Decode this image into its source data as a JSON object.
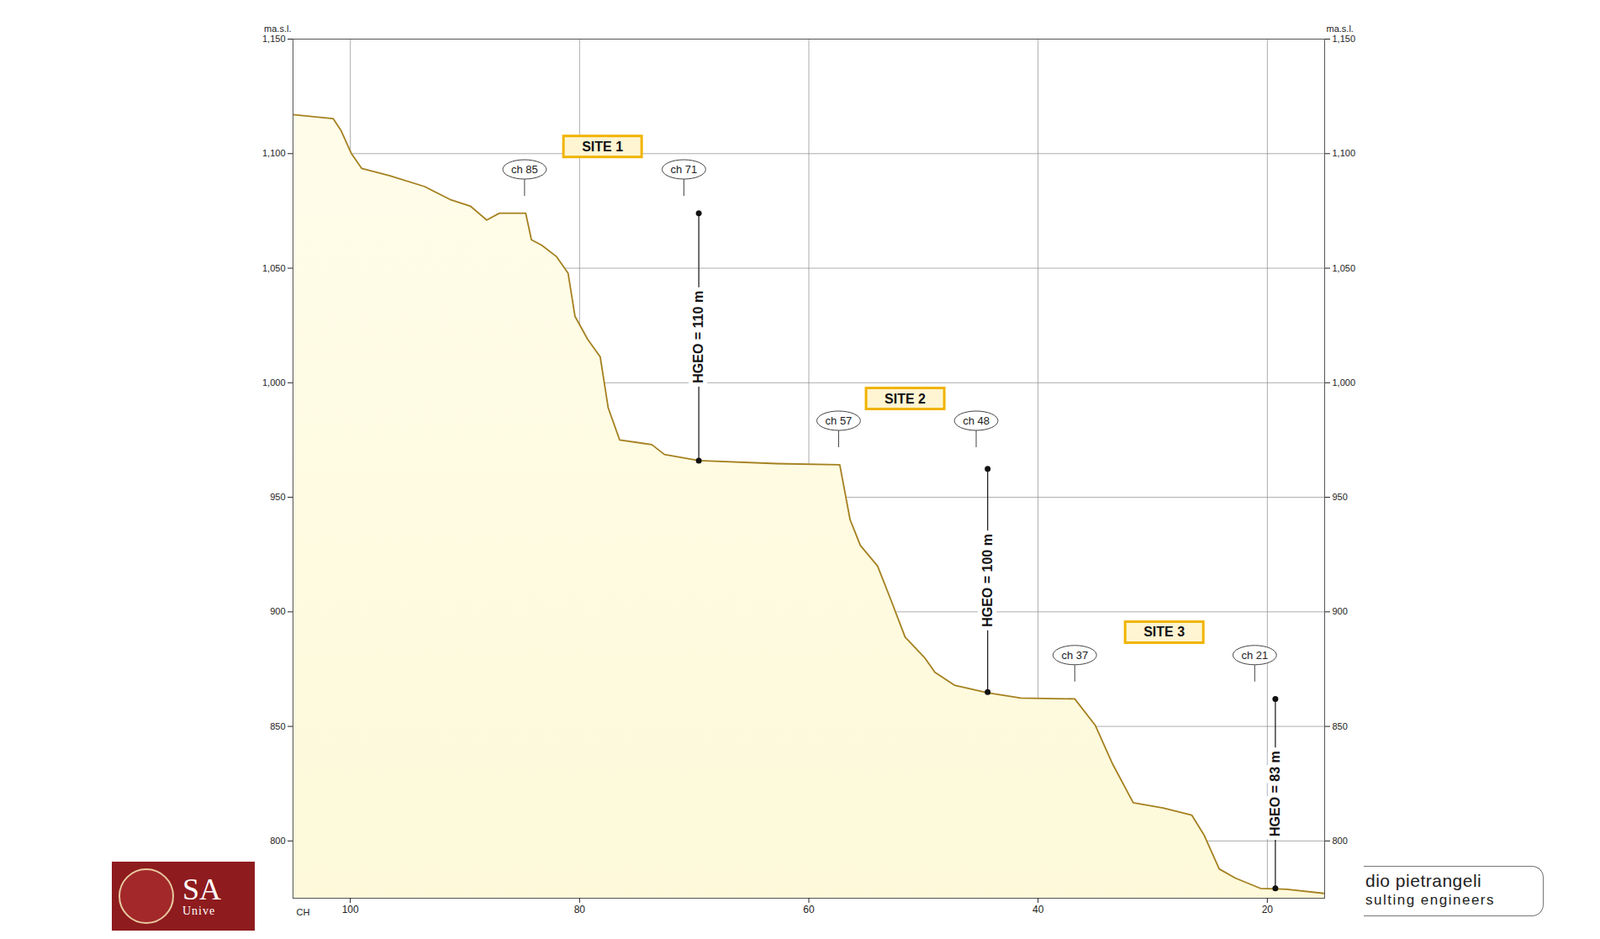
{
  "chart_data": {
    "type": "area",
    "x_label": "CH",
    "y_label": "ma.s.l.",
    "color": "#a5801f",
    "grid": true,
    "xlim": [
      105,
      15
    ],
    "ylim": [
      775,
      1150
    ],
    "xticks": [
      100,
      80,
      60,
      40,
      20
    ],
    "yticks": [
      800,
      850,
      900,
      950,
      1000,
      1050,
      1100,
      1150
    ],
    "x": [
      105,
      101.5,
      100.8,
      99.9,
      99,
      96.6,
      93.5,
      91.3,
      89.5,
      88.1,
      87,
      84.7,
      84.2,
      83.3,
      82,
      81,
      80.4,
      79.3,
      78.2,
      77.5,
      76.5,
      73.7,
      72.6,
      69.6,
      62.8,
      57.3,
      56.4,
      55.5,
      54,
      52.8,
      51.6,
      49.9,
      49,
      47.3,
      44.4,
      41.5,
      36.8,
      35,
      33.5,
      31.7,
      29.1,
      26.6,
      25.5,
      24.2,
      22.8,
      20.6,
      18.3,
      15
    ],
    "values": [
      1117,
      1115.3,
      1110,
      1100,
      1093.5,
      1090.4,
      1085.6,
      1080,
      1077,
      1071,
      1074,
      1074,
      1062.4,
      1060,
      1055,
      1047.8,
      1029,
      1019,
      1011.3,
      989,
      975,
      973,
      968.7,
      966,
      964.7,
      964.2,
      940.2,
      929,
      920,
      904.7,
      889,
      880,
      873.6,
      868,
      864.7,
      862.4,
      862,
      850.4,
      833.6,
      816.7,
      814.4,
      811.3,
      802.4,
      787.8,
      783.8,
      779.3,
      778.9,
      777.1
    ],
    "sites": [
      {
        "label": "SITE 1",
        "x": 78,
        "y": 1103
      },
      {
        "label": "SITE 2",
        "x": 51.6,
        "y": 993
      },
      {
        "label": "SITE 3",
        "x": 29,
        "y": 891
      }
    ],
    "chainage_labels": [
      {
        "label": "ch 85",
        "x": 84.8,
        "y": 1093
      },
      {
        "label": "ch 71",
        "x": 70.9,
        "y": 1093
      },
      {
        "label": "ch 57",
        "x": 57.4,
        "y": 983.3
      },
      {
        "label": "ch 48",
        "x": 45.4,
        "y": 983.3
      },
      {
        "label": "ch 37",
        "x": 36.8,
        "y": 881
      },
      {
        "label": "ch 21",
        "x": 21.1,
        "y": 881
      }
    ],
    "heads": [
      {
        "label": "HGEO = 110 m",
        "x": 69.6,
        "y1": 966,
        "y2": 1074
      },
      {
        "label": "HGEO = 100 m",
        "x": 44.4,
        "y1": 865,
        "y2": 962.4
      },
      {
        "label": "HGEO = 83 m",
        "x": 19.3,
        "y1": 779.3,
        "y2": 862
      }
    ],
    "logos": {
      "left": [
        "SA",
        "Unive"
      ],
      "right": [
        "dio pietrangeli",
        "sulting engineers"
      ]
    }
  }
}
